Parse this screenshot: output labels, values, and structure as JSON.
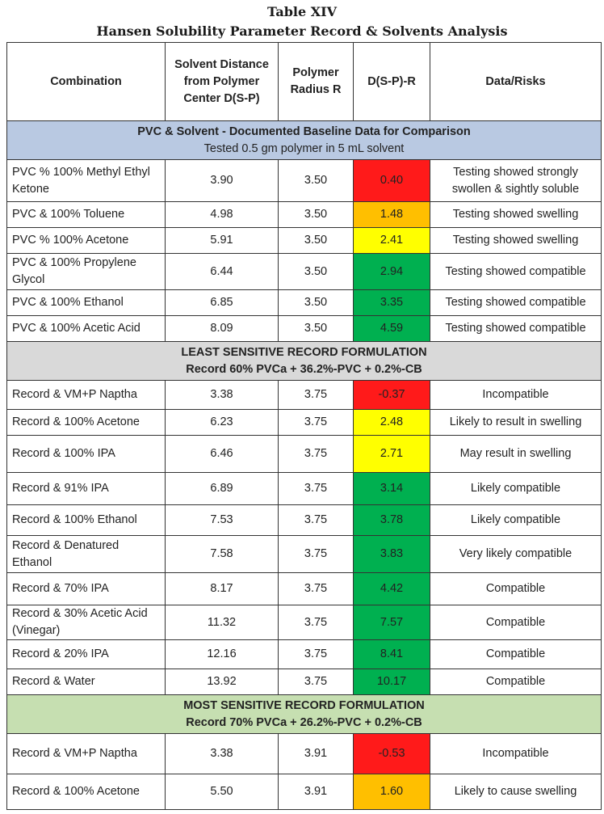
{
  "title": "Table XIV",
  "subtitle": "Hansen Solubility Parameter Record & Solvents Analysis",
  "headers": {
    "combination": "Combination",
    "distance": "Solvent Distance from Polymer Center D(S-P)",
    "radius": "Polymer Radius R",
    "diff": "D(S-P)-R",
    "risks": "Data/Risks"
  },
  "section1": {
    "title": "PVC & Solvent - Documented Baseline Data for Comparison",
    "note": "Tested 0.5 gm polymer in 5 mL solvent",
    "rows": [
      {
        "combination": "PVC % 100% Methyl Ethyl Ketone",
        "distance": "3.90",
        "radius": "3.50",
        "diff": "0.40",
        "risk": "Testing showed strongly swollen & sightly soluble",
        "color": "red"
      },
      {
        "combination": "PVC & 100% Toluene",
        "distance": "4.98",
        "radius": "3.50",
        "diff": "1.48",
        "risk": "Testing showed swelling",
        "color": "orange"
      },
      {
        "combination": "PVC % 100% Acetone",
        "distance": "5.91",
        "radius": "3.50",
        "diff": "2.41",
        "risk": "Testing showed swelling",
        "color": "yellow"
      },
      {
        "combination": "PVC & 100% Propylene Glycol",
        "distance": "6.44",
        "radius": "3.50",
        "diff": "2.94",
        "risk": "Testing showed compatible",
        "color": "green"
      },
      {
        "combination": "PVC & 100% Ethanol",
        "distance": "6.85",
        "radius": "3.50",
        "diff": "3.35",
        "risk": "Testing showed compatible",
        "color": "green"
      },
      {
        "combination": "PVC & 100% Acetic Acid",
        "distance": "8.09",
        "radius": "3.50",
        "diff": "4.59",
        "risk": "Testing showed compatible",
        "color": "green"
      }
    ]
  },
  "section2": {
    "title": "LEAST SENSITIVE RECORD FORMULATION",
    "note": "Record 60% PVCa + 36.2%-PVC + 0.2%-CB",
    "rows": [
      {
        "combination": "Record & VM+P Naptha",
        "distance": "3.38",
        "radius": "3.75",
        "diff": "-0.37",
        "risk": "Incompatible",
        "color": "red"
      },
      {
        "combination": "Record & 100% Acetone",
        "distance": "6.23",
        "radius": "3.75",
        "diff": "2.48",
        "risk": "Likely to result in swelling",
        "color": "yellow"
      },
      {
        "combination": "Record & 100% IPA",
        "distance": "6.46",
        "radius": "3.75",
        "diff": "2.71",
        "risk": "May result in swelling",
        "color": "yellow"
      },
      {
        "combination": "Record & 91% IPA",
        "distance": "6.89",
        "radius": "3.75",
        "diff": "3.14",
        "risk": "Likely compatible",
        "color": "green"
      },
      {
        "combination": "Record & 100% Ethanol",
        "distance": "7.53",
        "radius": "3.75",
        "diff": "3.78",
        "risk": "Likely compatible",
        "color": "green"
      },
      {
        "combination": "Record & Denatured Ethanol",
        "distance": "7.58",
        "radius": "3.75",
        "diff": "3.83",
        "risk": "Very likely compatible",
        "color": "green"
      },
      {
        "combination": "Record & 70% IPA",
        "distance": "8.17",
        "radius": "3.75",
        "diff": "4.42",
        "risk": "Compatible",
        "color": "green"
      },
      {
        "combination": "Record & 30% Acetic Acid (Vinegar)",
        "distance": "11.32",
        "radius": "3.75",
        "diff": "7.57",
        "risk": "Compatible",
        "color": "green"
      },
      {
        "combination": "Record & 20% IPA",
        "distance": "12.16",
        "radius": "3.75",
        "diff": "8.41",
        "risk": "Compatible",
        "color": "green"
      },
      {
        "combination": "Record & Water",
        "distance": "13.92",
        "radius": "3.75",
        "diff": "10.17",
        "risk": "Compatible",
        "color": "green"
      }
    ]
  },
  "section3": {
    "title": "MOST SENSITIVE RECORD FORMULATION",
    "note": "Record 70% PVCa + 26.2%-PVC + 0.2%-CB",
    "rows": [
      {
        "combination": "Record & VM+P Naptha",
        "distance": "3.38",
        "radius": "3.91",
        "diff": "-0.53",
        "risk": "Incompatible",
        "color": "red"
      },
      {
        "combination": "Record & 100% Acetone",
        "distance": "5.50",
        "radius": "3.91",
        "diff": "1.60",
        "risk": "Likely to cause swelling",
        "color": "orange"
      }
    ]
  },
  "colors": {
    "red": "#ff1a1a",
    "orange": "#ffbf00",
    "yellow": "#ffff00",
    "green": "#00b050",
    "section_blue": "#b9c9e2",
    "section_gray": "#d9d9d9",
    "section_green": "#c6dfb1"
  }
}
